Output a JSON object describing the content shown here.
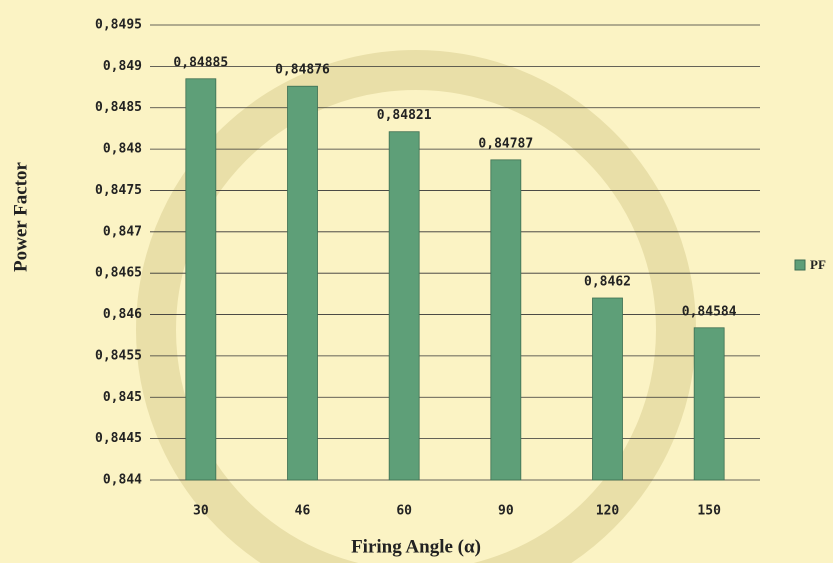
{
  "chart_data": {
    "type": "bar",
    "x_label": "Firing Angle (α)",
    "y_label": "Power Factor",
    "categories": [
      "30",
      "46",
      "60",
      "90",
      "120",
      "150"
    ],
    "series": [
      {
        "name": "PF",
        "color": "#5e9f78",
        "values": [
          0.84885,
          0.84876,
          0.84821,
          0.84787,
          0.8462,
          0.84584
        ],
        "value_labels": [
          "0,84885",
          "0,84876",
          "0,84821",
          "0,84787",
          "0,8462",
          "0,84584"
        ]
      }
    ],
    "ylim": [
      0.844,
      0.8495
    ],
    "yticks": [
      {
        "value": 0.844,
        "label": "0,844"
      },
      {
        "value": 0.8445,
        "label": "0,8445"
      },
      {
        "value": 0.845,
        "label": "0,845"
      },
      {
        "value": 0.8455,
        "label": "0,8455"
      },
      {
        "value": 0.846,
        "label": "0,846"
      },
      {
        "value": 0.8465,
        "label": "0,8465"
      },
      {
        "value": 0.847,
        "label": "0,847"
      },
      {
        "value": 0.8475,
        "label": "0,8475"
      },
      {
        "value": 0.848,
        "label": "0,848"
      },
      {
        "value": 0.8485,
        "label": "0,8485"
      },
      {
        "value": 0.849,
        "label": "0,849"
      },
      {
        "value": 0.8495,
        "label": "0,8495"
      }
    ],
    "grid": true,
    "legend": "right"
  }
}
